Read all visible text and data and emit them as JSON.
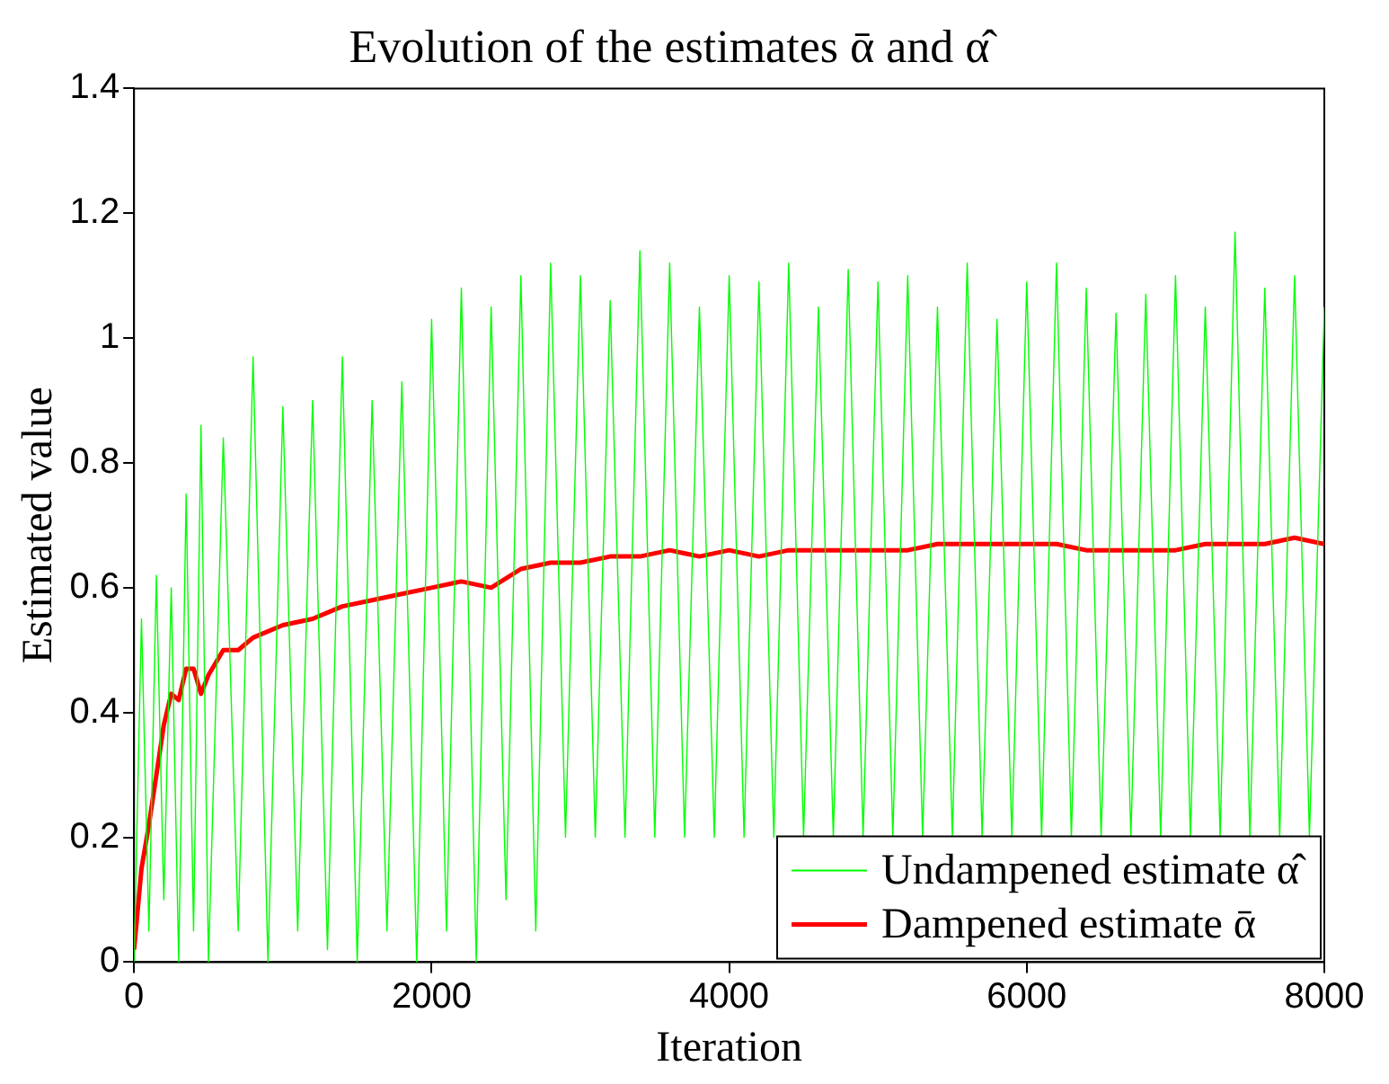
{
  "chart_data": {
    "type": "line",
    "title": "Evolution of the estimates ᾱ and α̂",
    "xlabel": "Iteration",
    "ylabel": "Estimated value",
    "xlim": [
      0,
      8000
    ],
    "xticks": [
      0,
      2000,
      4000,
      6000,
      8000
    ],
    "ylim": [
      0,
      1.4
    ],
    "yticks": [
      0,
      0.2,
      0.4,
      0.6,
      0.8,
      1,
      1.2,
      1.4
    ],
    "grid": false,
    "legend": "bottom right",
    "marker": "none",
    "line_style": "solid",
    "series": [
      {
        "name": "Undampened estimate α̂",
        "color": "#00ff00",
        "x": [
          0,
          50,
          100,
          150,
          200,
          250,
          300,
          350,
          400,
          450,
          500,
          600,
          700,
          800,
          900,
          1000,
          1100,
          1200,
          1300,
          1400,
          1500,
          1600,
          1700,
          1800,
          1900,
          2000,
          2100,
          2200,
          2300,
          2400,
          2500,
          2600,
          2700,
          2800,
          2900,
          3000,
          3100,
          3200,
          3300,
          3400,
          3500,
          3600,
          3700,
          3800,
          3900,
          4000,
          4100,
          4200,
          4300,
          4400,
          4500,
          4600,
          4700,
          4800,
          4900,
          5000,
          5100,
          5200,
          5300,
          5400,
          5500,
          5600,
          5700,
          5800,
          5900,
          6000,
          6100,
          6200,
          6300,
          6400,
          6500,
          6600,
          6700,
          6800,
          6900,
          7000,
          7100,
          7200,
          7300,
          7400,
          7500,
          7600,
          7700,
          7800,
          7900,
          8000
        ],
        "values": [
          0,
          0.55,
          0.05,
          0.62,
          0.1,
          0.6,
          0,
          0.75,
          0.05,
          0.86,
          0,
          0.84,
          0.05,
          0.97,
          0,
          0.89,
          0.05,
          0.9,
          0.02,
          0.97,
          0,
          0.9,
          0.05,
          0.93,
          0,
          1.03,
          0.05,
          1.08,
          0,
          1.05,
          0.1,
          1.1,
          0.05,
          1.12,
          0.2,
          1.1,
          0.2,
          1.06,
          0.2,
          1.14,
          0.2,
          1.12,
          0.2,
          1.05,
          0.2,
          1.1,
          0.2,
          1.09,
          0.2,
          1.12,
          0.2,
          1.05,
          0.2,
          1.11,
          0.2,
          1.09,
          0.2,
          1.1,
          0.2,
          1.05,
          0.2,
          1.12,
          0.2,
          1.03,
          0.2,
          1.09,
          0.2,
          1.12,
          0.2,
          1.08,
          0.2,
          1.04,
          0.2,
          1.07,
          0.2,
          1.1,
          0.2,
          1.05,
          0.2,
          1.17,
          0.2,
          1.08,
          0.2,
          1.1,
          0.2,
          1.05
        ]
      },
      {
        "name": "Dampened estimate ᾱ",
        "color": "#ff0000",
        "x": [
          0,
          50,
          100,
          150,
          200,
          250,
          300,
          350,
          400,
          450,
          500,
          600,
          700,
          800,
          1000,
          1200,
          1400,
          1600,
          1800,
          2000,
          2200,
          2400,
          2600,
          2800,
          3000,
          3200,
          3400,
          3600,
          3800,
          4000,
          4200,
          4400,
          4600,
          4800,
          5000,
          5200,
          5400,
          5600,
          5800,
          6000,
          6200,
          6400,
          6600,
          6800,
          7000,
          7200,
          7400,
          7600,
          7800,
          8000
        ],
        "values": [
          0.02,
          0.15,
          0.22,
          0.3,
          0.38,
          0.43,
          0.42,
          0.47,
          0.47,
          0.43,
          0.46,
          0.5,
          0.5,
          0.52,
          0.54,
          0.55,
          0.57,
          0.58,
          0.59,
          0.6,
          0.61,
          0.6,
          0.63,
          0.64,
          0.64,
          0.65,
          0.65,
          0.66,
          0.65,
          0.66,
          0.65,
          0.66,
          0.66,
          0.66,
          0.66,
          0.66,
          0.67,
          0.67,
          0.67,
          0.67,
          0.67,
          0.66,
          0.66,
          0.66,
          0.66,
          0.67,
          0.67,
          0.67,
          0.68,
          0.67
        ]
      }
    ]
  }
}
